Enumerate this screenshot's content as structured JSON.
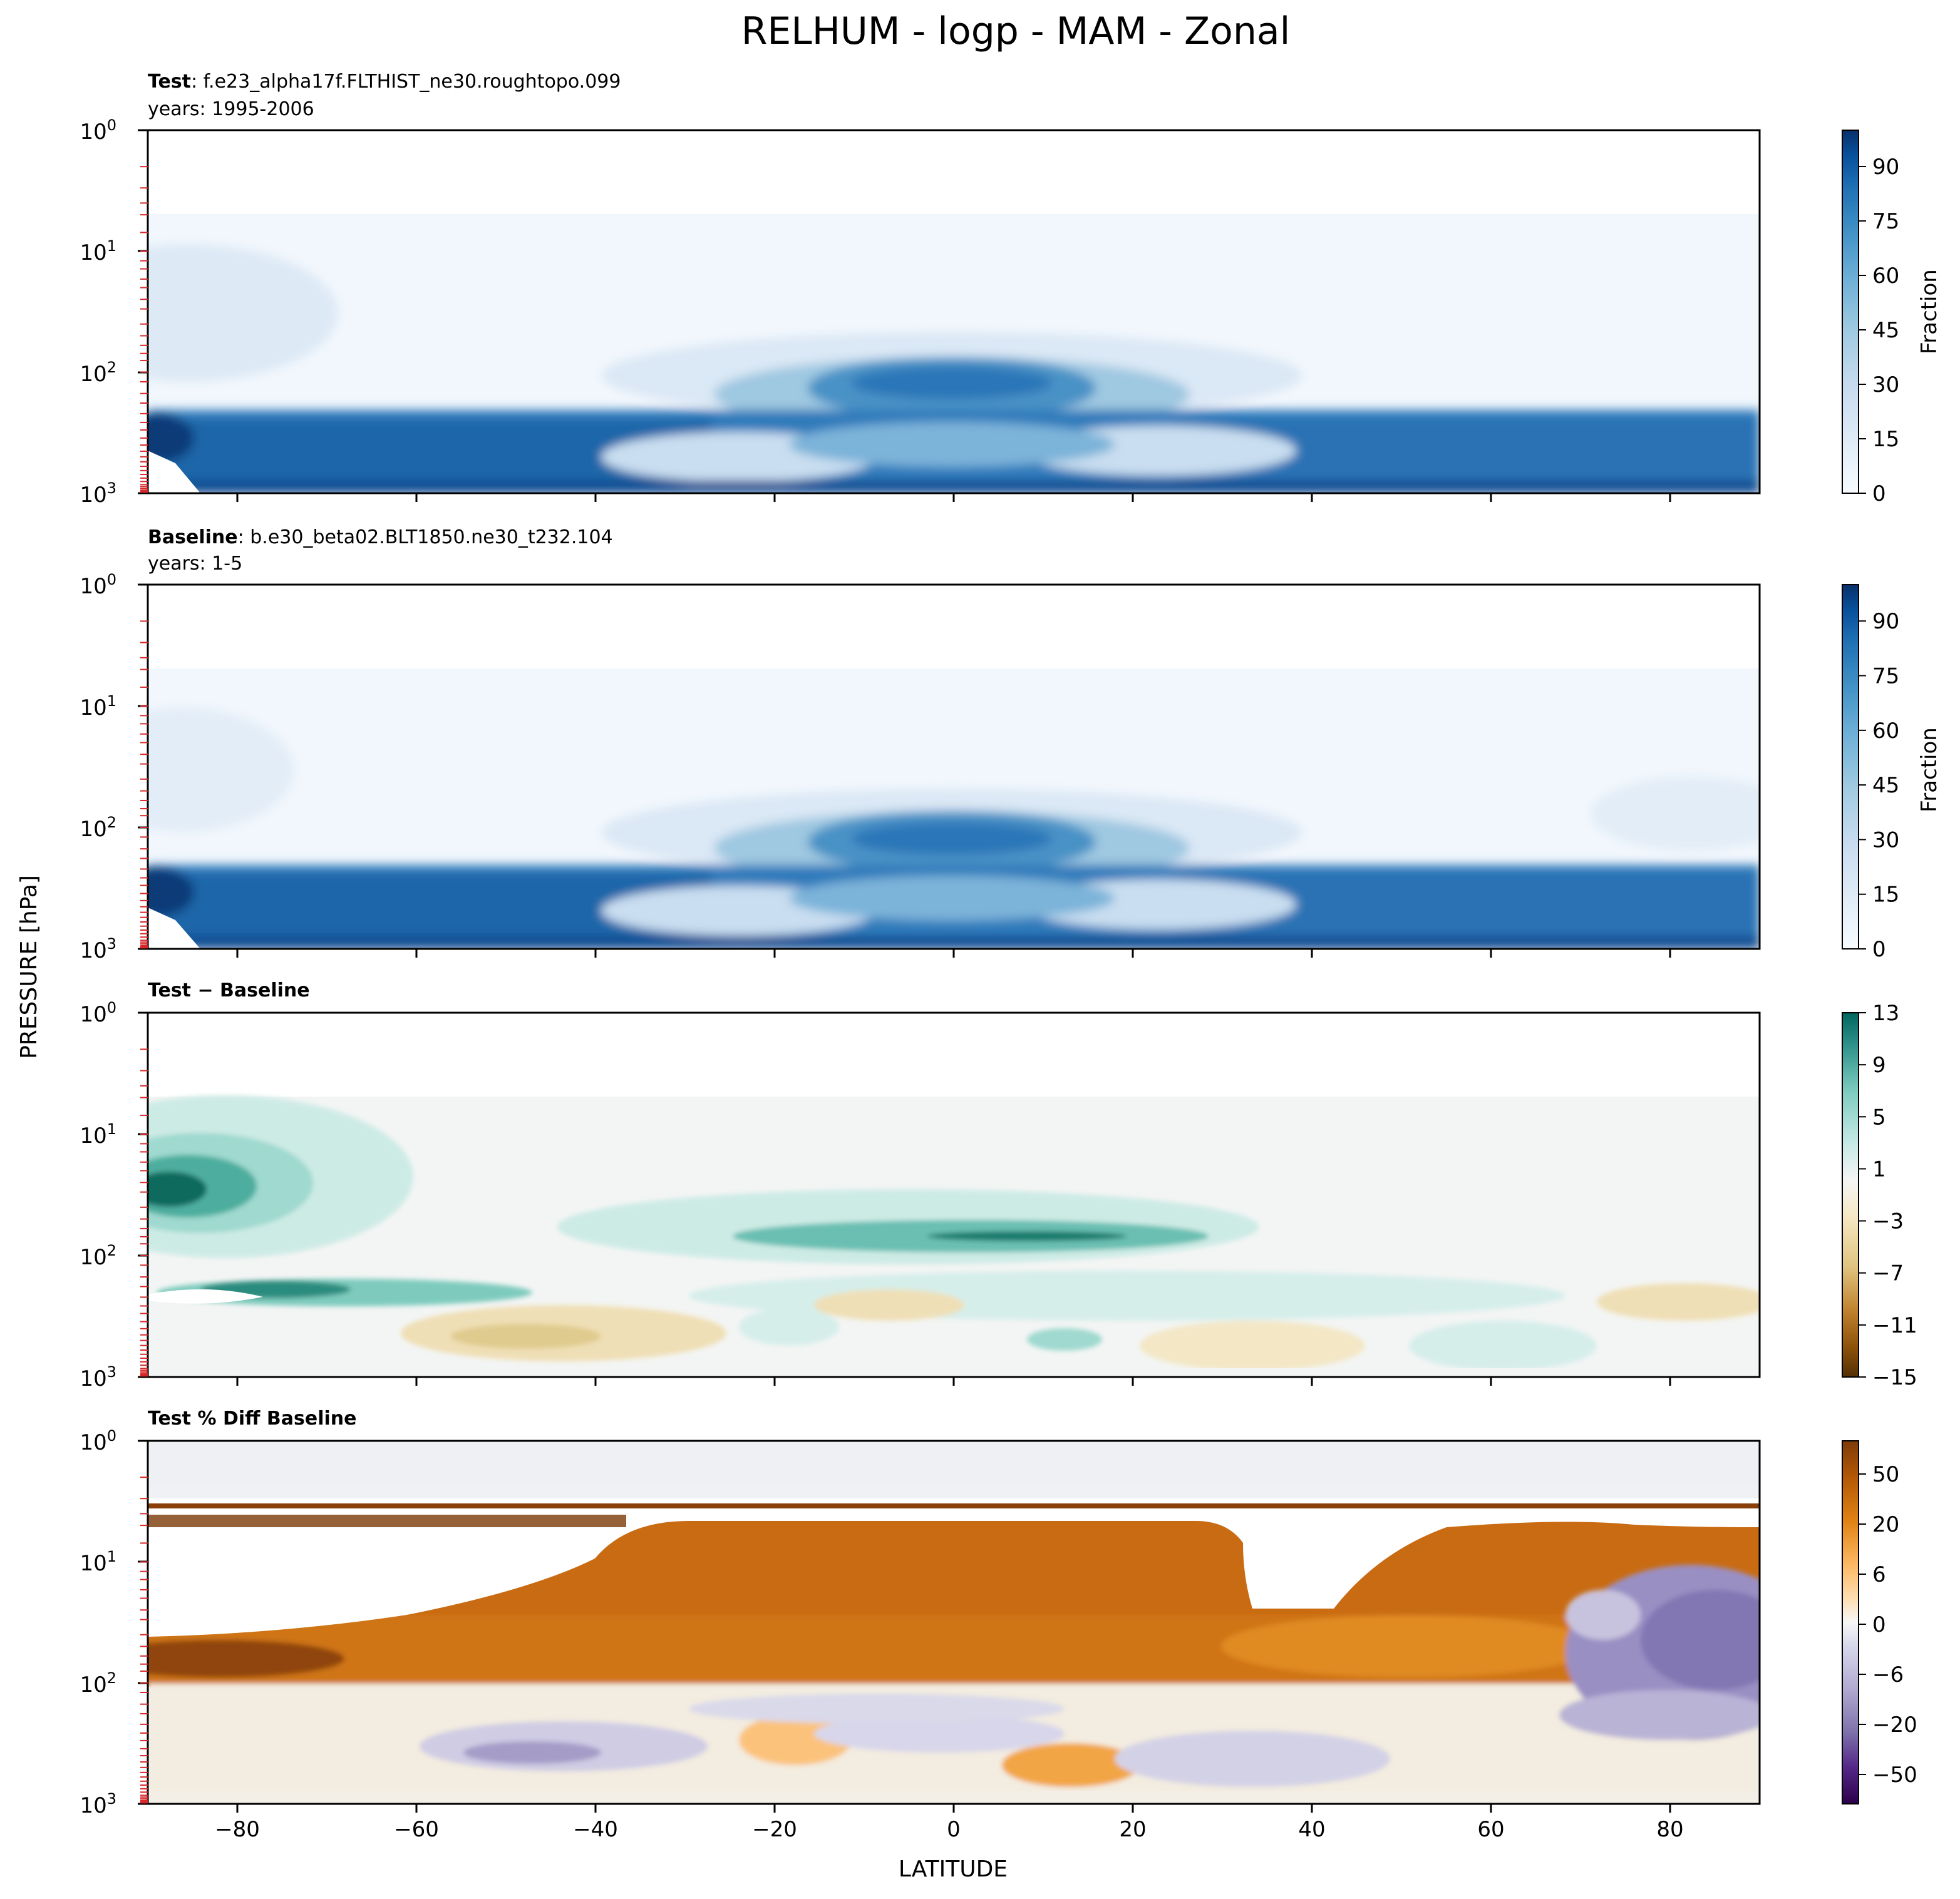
{
  "figure": {
    "title": "RELHUM - logp - MAM - Zonal",
    "ylabel": "PRESSURE [hPa]",
    "xlabel": "LATITUDE"
  },
  "chart_data": [
    {
      "type": "contour",
      "panel_title_bold": "Test",
      "panel_title_rest": ": f.e23_alpha17f.FLTHIST_ne30.roughtopo.099",
      "panel_subtitle": "years: 1995-2006",
      "colormap": "Blues",
      "xlim": [
        -90,
        90
      ],
      "ylim_hPa": [
        1000,
        1
      ],
      "y_scale": "log",
      "y_ticks": [
        "10^0",
        "10^1",
        "10^2",
        "10^3"
      ],
      "x_ticks": [],
      "colorbar": {
        "label": "Fraction",
        "ticks": [
          "0",
          "15",
          "30",
          "45",
          "60",
          "75",
          "90"
        ],
        "range": [
          0,
          100
        ],
        "colors": [
          "#f7fbff",
          "#deebf7",
          "#c6dbef",
          "#9ecae1",
          "#6baed6",
          "#4292c6",
          "#2171b5",
          "#08519c",
          "#08306b"
        ]
      }
    },
    {
      "type": "contour",
      "panel_title_bold": "Baseline",
      "panel_title_rest": ": b.e30_beta02.BLT1850.ne30_t232.104",
      "panel_subtitle": "years: 1-5",
      "colormap": "Blues",
      "xlim": [
        -90,
        90
      ],
      "ylim_hPa": [
        1000,
        1
      ],
      "y_scale": "log",
      "y_ticks": [
        "10^0",
        "10^1",
        "10^2",
        "10^3"
      ],
      "x_ticks": [],
      "colorbar": {
        "label": "Fraction",
        "ticks": [
          "0",
          "15",
          "30",
          "45",
          "60",
          "75",
          "90"
        ],
        "range": [
          0,
          100
        ],
        "colors": [
          "#f7fbff",
          "#deebf7",
          "#c6dbef",
          "#9ecae1",
          "#6baed6",
          "#4292c6",
          "#2171b5",
          "#08519c",
          "#08306b"
        ]
      }
    },
    {
      "type": "contour",
      "panel_title_bold": "Test − Baseline",
      "panel_title_rest": "",
      "panel_subtitle": "",
      "colormap": "BrBG",
      "xlim": [
        -90,
        90
      ],
      "ylim_hPa": [
        1000,
        1
      ],
      "y_scale": "log",
      "y_ticks": [
        "10^0",
        "10^1",
        "10^2",
        "10^3"
      ],
      "x_ticks": [],
      "colorbar": {
        "label": "",
        "ticks": [
          "13",
          "9",
          "5",
          "1",
          "−3",
          "−7",
          "−11",
          "−15"
        ],
        "range": [
          -15,
          13
        ],
        "colors": [
          "#01665e",
          "#35978f",
          "#80cdc1",
          "#c7eae5",
          "#f5f5f5",
          "#f6e8c3",
          "#dfc27d",
          "#bf812d",
          "#8c510a",
          "#543005"
        ]
      }
    },
    {
      "type": "contour",
      "panel_title_bold": "Test % Diff Baseline",
      "panel_title_rest": "",
      "panel_subtitle": "",
      "colormap": "PuOr",
      "xlim": [
        -90,
        90
      ],
      "ylim_hPa": [
        1000,
        1
      ],
      "y_scale": "log",
      "y_ticks": [
        "10^0",
        "10^1",
        "10^2",
        "10^3"
      ],
      "x_ticks": [
        "−80",
        "−60",
        "−40",
        "−20",
        "0",
        "20",
        "40",
        "60",
        "80"
      ],
      "colorbar": {
        "label": "",
        "ticks": [
          "50",
          "20",
          "6",
          "0",
          "−6",
          "−20",
          "−50"
        ],
        "range": [
          -100,
          100
        ],
        "colors": [
          "#7f3b08",
          "#b35806",
          "#e08214",
          "#fdb863",
          "#fee0b6",
          "#f7f7f7",
          "#d8daeb",
          "#b2abd2",
          "#8073ac",
          "#542788",
          "#2d004b"
        ]
      }
    }
  ]
}
